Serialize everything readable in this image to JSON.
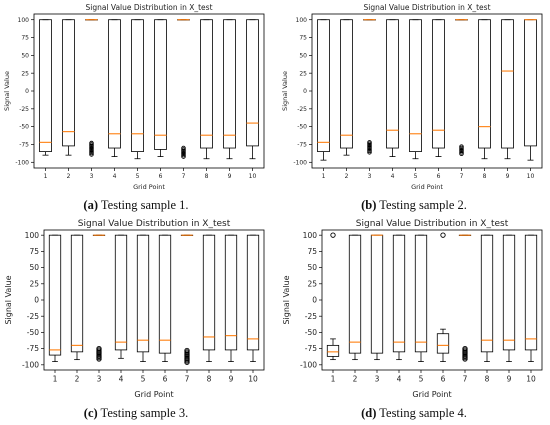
{
  "chart_data": [
    {
      "type": "box",
      "title": "Signal Value Distribution in X_test",
      "xlabel": "Grid Point",
      "ylabel": "Signal Value",
      "categories": [
        "1",
        "2",
        "3",
        "4",
        "5",
        "6",
        "7",
        "8",
        "9",
        "10"
      ],
      "yticks": [
        100,
        75,
        50,
        25,
        0,
        -25,
        -50,
        -75,
        -100
      ],
      "ylim": [
        -108,
        108
      ],
      "caption_tag": "(a)",
      "caption_text": " Testing sample 1.",
      "boxes": [
        {
          "low": -90,
          "q1": -85,
          "median": -72,
          "q3": 100,
          "high": 100
        },
        {
          "low": -90,
          "q1": -77,
          "median": -57,
          "q3": 100,
          "high": 100
        },
        {
          "low": 100,
          "q1": 100,
          "median": 100,
          "q3": 100,
          "high": 100,
          "outliers": [
            -73,
            -75,
            -77,
            -79,
            -81,
            -83,
            -85,
            -87,
            -89
          ]
        },
        {
          "low": -92,
          "q1": -80,
          "median": -60,
          "q3": 100,
          "high": 100
        },
        {
          "low": -95,
          "q1": -85,
          "median": -60,
          "q3": 100,
          "high": 100
        },
        {
          "low": -92,
          "q1": -82,
          "median": -62,
          "q3": 100,
          "high": 100
        },
        {
          "low": 100,
          "q1": 100,
          "median": 100,
          "q3": 100,
          "high": 100,
          "outliers": [
            -80,
            -82,
            -84,
            -86,
            -88,
            -90,
            -92
          ]
        },
        {
          "low": -95,
          "q1": -80,
          "median": -62,
          "q3": 100,
          "high": 100
        },
        {
          "low": -95,
          "q1": -80,
          "median": -62,
          "q3": 100,
          "high": 100
        },
        {
          "low": -95,
          "q1": -77,
          "median": -45,
          "q3": 100,
          "high": 100
        }
      ]
    },
    {
      "type": "box",
      "title": "Signal Value Distribution in X_test",
      "xlabel": "Grid Point",
      "ylabel": "Signal Value",
      "categories": [
        "1",
        "2",
        "3",
        "4",
        "5",
        "6",
        "7",
        "8",
        "9",
        "10"
      ],
      "yticks": [
        100,
        75,
        50,
        25,
        0,
        -25,
        -50,
        -75,
        -100
      ],
      "ylim": [
        -108,
        108
      ],
      "caption_tag": "(b)",
      "caption_text": " Testing sample 2.",
      "boxes": [
        {
          "low": -97,
          "q1": -85,
          "median": -72,
          "q3": 100,
          "high": 100
        },
        {
          "low": -90,
          "q1": -80,
          "median": -62,
          "q3": 100,
          "high": 100
        },
        {
          "low": 100,
          "q1": 100,
          "median": 100,
          "q3": 100,
          "high": 100,
          "outliers": [
            -72,
            -74,
            -76,
            -78,
            -80,
            -82,
            -84,
            -86
          ]
        },
        {
          "low": -92,
          "q1": -80,
          "median": -55,
          "q3": 100,
          "high": 100
        },
        {
          "low": -95,
          "q1": -85,
          "median": -60,
          "q3": 100,
          "high": 100
        },
        {
          "low": -92,
          "q1": -80,
          "median": -55,
          "q3": 100,
          "high": 100
        },
        {
          "low": 100,
          "q1": 100,
          "median": 100,
          "q3": 100,
          "high": 100,
          "outliers": [
            -78,
            -80,
            -82,
            -84,
            -86,
            -88
          ]
        },
        {
          "low": -95,
          "q1": -80,
          "median": -50,
          "q3": 100,
          "high": 100
        },
        {
          "low": -95,
          "q1": -80,
          "median": 28,
          "q3": 100,
          "high": 100
        },
        {
          "low": -97,
          "q1": -77,
          "median": 100,
          "q3": 100,
          "high": 100
        }
      ]
    },
    {
      "type": "box",
      "title": "Signal Value Distribution in X_test",
      "xlabel": "Grid Point",
      "ylabel": "Signal Value",
      "categories": [
        "1",
        "2",
        "3",
        "4",
        "5",
        "6",
        "7",
        "8",
        "9",
        "10"
      ],
      "yticks": [
        100,
        75,
        50,
        25,
        0,
        -25,
        -50,
        -75,
        -100
      ],
      "ylim": [
        -108,
        108
      ],
      "caption_tag": "(c)",
      "caption_text": " Testing sample 3.",
      "boxes": [
        {
          "low": -95,
          "q1": -85,
          "median": -77,
          "q3": 100,
          "high": 100
        },
        {
          "low": -92,
          "q1": -80,
          "median": -70,
          "q3": 100,
          "high": 100
        },
        {
          "low": 100,
          "q1": 100,
          "median": 100,
          "q3": 100,
          "high": 100,
          "outliers": [
            -75,
            -77,
            -79,
            -81,
            -83,
            -85,
            -87,
            -89,
            -91
          ]
        },
        {
          "low": -90,
          "q1": -77,
          "median": -65,
          "q3": 100,
          "high": 100
        },
        {
          "low": -95,
          "q1": -80,
          "median": -62,
          "q3": 100,
          "high": 100
        },
        {
          "low": -95,
          "q1": -82,
          "median": -62,
          "q3": 100,
          "high": 100
        },
        {
          "low": 100,
          "q1": 100,
          "median": 100,
          "q3": 100,
          "high": 100,
          "outliers": [
            -78,
            -80,
            -82,
            -84,
            -86,
            -88,
            -90,
            -92,
            -94,
            -96
          ]
        },
        {
          "low": -95,
          "q1": -77,
          "median": -57,
          "q3": 100,
          "high": 100
        },
        {
          "low": -95,
          "q1": -77,
          "median": -55,
          "q3": 100,
          "high": 100
        },
        {
          "low": -95,
          "q1": -77,
          "median": -60,
          "q3": 100,
          "high": 100
        }
      ]
    },
    {
      "type": "box",
      "title": "Signal Value Distribution in X_test",
      "xlabel": "Grid Point",
      "ylabel": "Signal Value",
      "categories": [
        "1",
        "2",
        "3",
        "4",
        "5",
        "6",
        "7",
        "8",
        "9",
        "10"
      ],
      "yticks": [
        100,
        75,
        50,
        25,
        0,
        -25,
        -50,
        -75,
        -100
      ],
      "ylim": [
        -108,
        108
      ],
      "caption_tag": "(d)",
      "caption_text": " Testing sample 4.",
      "boxes": [
        {
          "low": -92,
          "q1": -87,
          "median": -80,
          "q3": -70,
          "high": -60,
          "outliers": [
            100
          ]
        },
        {
          "low": -92,
          "q1": -82,
          "median": -65,
          "q3": 100,
          "high": 100
        },
        {
          "low": -92,
          "q1": -82,
          "median": 100,
          "q3": 100,
          "high": 100
        },
        {
          "low": -92,
          "q1": -80,
          "median": -65,
          "q3": 100,
          "high": 100
        },
        {
          "low": -95,
          "q1": -80,
          "median": -65,
          "q3": 100,
          "high": 100
        },
        {
          "low": -95,
          "q1": -82,
          "median": -70,
          "q3": -52,
          "high": -45,
          "outliers": [
            100
          ]
        },
        {
          "low": 100,
          "q1": 100,
          "median": 100,
          "q3": 100,
          "high": 100,
          "outliers": [
            -75,
            -77,
            -79,
            -81,
            -83,
            -85,
            -87,
            -89,
            -91
          ]
        },
        {
          "low": -95,
          "q1": -80,
          "median": -62,
          "q3": 100,
          "high": 100
        },
        {
          "low": -95,
          "q1": -77,
          "median": -62,
          "q3": 100,
          "high": 100
        },
        {
          "low": -95,
          "q1": -77,
          "median": -60,
          "q3": 100,
          "high": 100
        }
      ]
    }
  ],
  "colors": {
    "median": "#ff7f0e",
    "box": "#000000",
    "outlier": "#000000"
  }
}
